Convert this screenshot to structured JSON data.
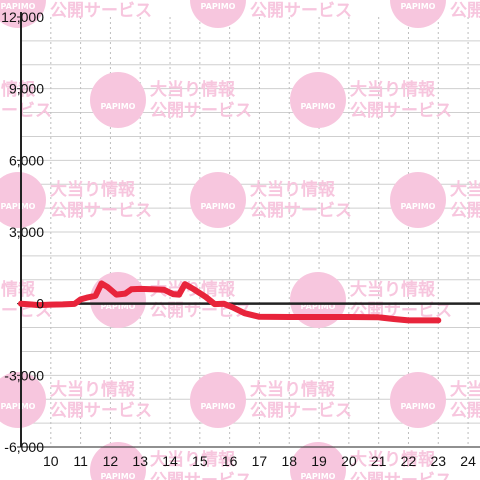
{
  "watermark": {
    "line1": "大当り情報",
    "line2": "公開サービス",
    "logo_text": "PAPIMO",
    "color": "#f7c6de"
  },
  "chart_data": {
    "type": "line",
    "title": "",
    "xlabel": "",
    "ylabel": "",
    "xlim": [
      9,
      24.4
    ],
    "ylim": [
      -6000,
      12000
    ],
    "x_ticks": [
      10,
      11,
      12,
      13,
      14,
      15,
      16,
      17,
      18,
      19,
      20,
      21,
      22,
      23,
      24
    ],
    "y_ticks": [
      -6000,
      -3000,
      0,
      3000,
      6000,
      9000,
      12000
    ],
    "x_tick_labels": [
      "10",
      "11",
      "12",
      "13",
      "14",
      "15",
      "16",
      "17",
      "18",
      "19",
      "20",
      "21",
      "22",
      "23",
      "24"
    ],
    "y_tick_labels": [
      "-6,000",
      "-3,000",
      "0",
      "3,000",
      "6,000",
      "9,000",
      "12,000"
    ],
    "grid": true,
    "series": [
      {
        "color": "#e8243b",
        "points": [
          [
            9.0,
            0
          ],
          [
            9.3,
            -30
          ],
          [
            9.6,
            -60
          ],
          [
            10.0,
            -40
          ],
          [
            10.4,
            -30
          ],
          [
            10.8,
            -10
          ],
          [
            11.0,
            180
          ],
          [
            11.2,
            250
          ],
          [
            11.5,
            330
          ],
          [
            11.7,
            850
          ],
          [
            11.9,
            700
          ],
          [
            12.2,
            380
          ],
          [
            12.5,
            420
          ],
          [
            12.7,
            600
          ],
          [
            13.0,
            620
          ],
          [
            13.4,
            600
          ],
          [
            13.8,
            580
          ],
          [
            14.1,
            400
          ],
          [
            14.3,
            380
          ],
          [
            14.5,
            820
          ],
          [
            14.8,
            600
          ],
          [
            15.2,
            280
          ],
          [
            15.5,
            -20
          ],
          [
            15.8,
            0
          ],
          [
            16.1,
            -150
          ],
          [
            16.5,
            -400
          ],
          [
            17.0,
            -550
          ],
          [
            18.0,
            -560
          ],
          [
            19.0,
            -560
          ],
          [
            20.0,
            -560
          ],
          [
            21.0,
            -570
          ],
          [
            21.5,
            -640
          ],
          [
            22.0,
            -700
          ],
          [
            23.0,
            -700
          ]
        ]
      }
    ]
  }
}
